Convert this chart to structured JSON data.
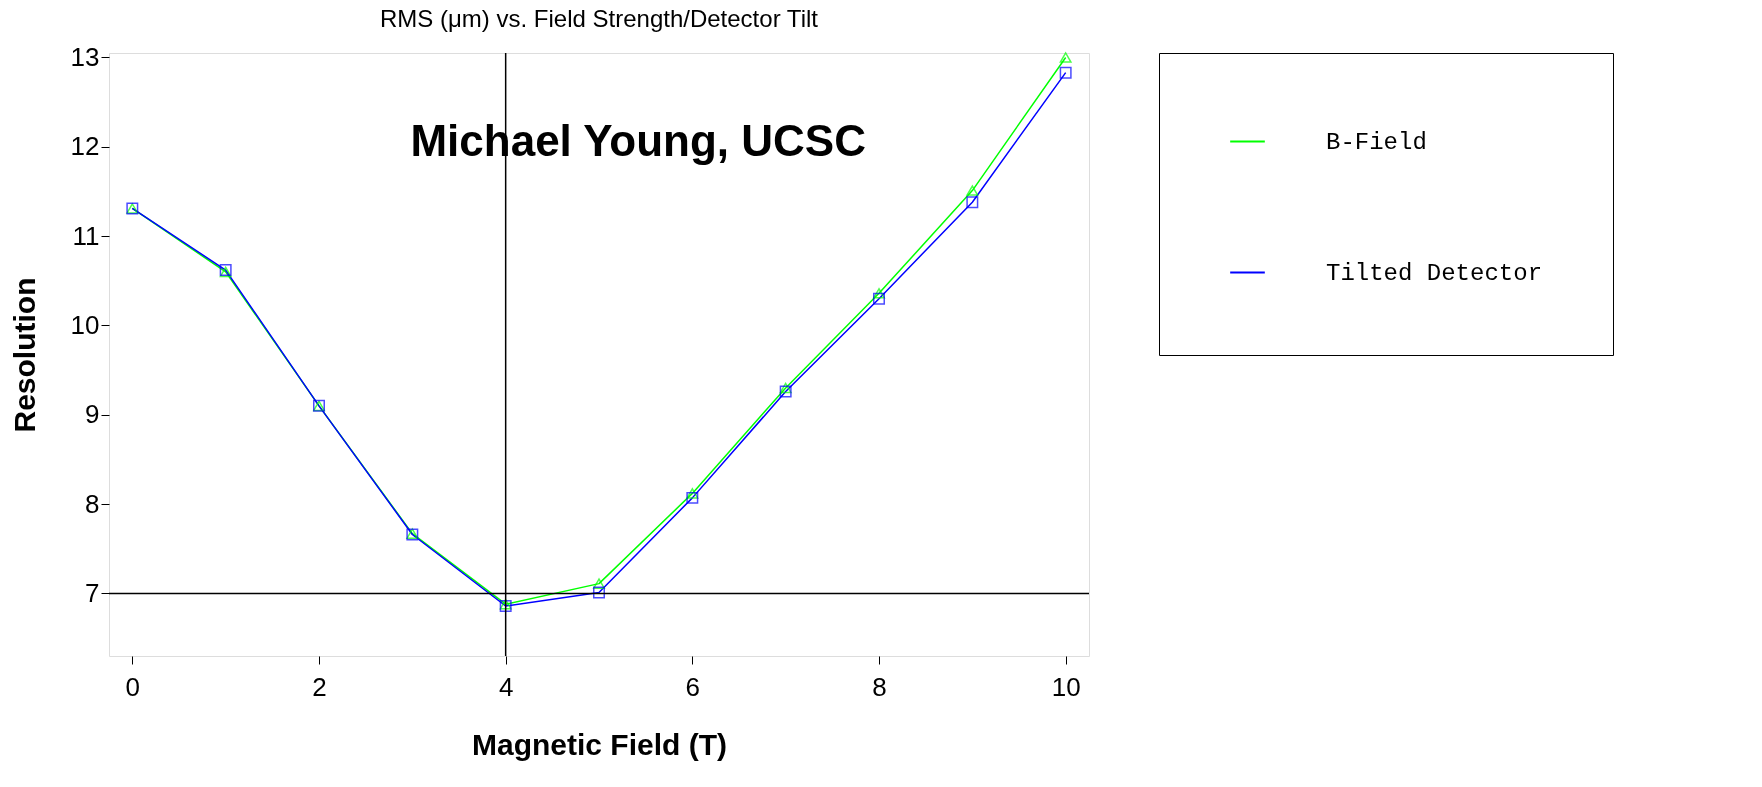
{
  "chart_data": {
    "type": "line",
    "title": "RMS (μm) vs. Field Strength/Detector Tilt",
    "xlabel": "Magnetic Field (T)",
    "ylabel": "Resolution",
    "x": [
      0,
      1,
      2,
      3,
      4,
      5,
      6,
      7,
      8,
      9,
      10
    ],
    "series": [
      {
        "name": "B-Field",
        "color": "#00ff00",
        "marker": "triangle",
        "values": [
          11.31,
          10.6,
          9.1,
          7.67,
          6.88,
          7.11,
          8.12,
          9.3,
          10.36,
          11.51,
          13.0
        ]
      },
      {
        "name": "Tilted Detector",
        "color": "#0000ff",
        "marker": "square",
        "values": [
          11.31,
          10.62,
          9.1,
          7.66,
          6.86,
          7.01,
          8.07,
          9.26,
          10.3,
          11.38,
          12.83
        ]
      }
    ],
    "xlim": [
      -0.25,
      10.25
    ],
    "ylim": [
      6.3,
      13.05
    ],
    "xticks": [
      0,
      2,
      4,
      6,
      8,
      10
    ],
    "yticks": [
      7,
      8,
      9,
      10,
      11,
      12,
      13
    ],
    "ref_lines": [
      {
        "axis": "x",
        "value": 4,
        "color": "#000000"
      },
      {
        "axis": "y",
        "value": 7,
        "color": "#000000"
      }
    ],
    "annotations": [
      "Michael Young, UCSC"
    ],
    "grid": false,
    "legend": "right",
    "line_style": "solid"
  }
}
